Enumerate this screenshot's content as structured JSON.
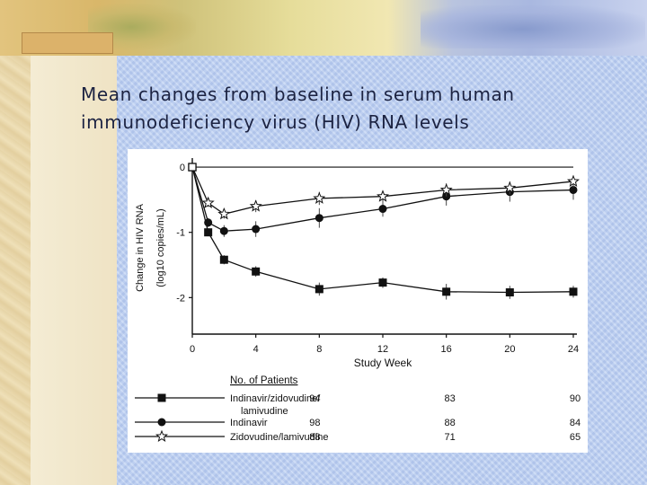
{
  "slide": {
    "title_line1": "Mean changes from baseline in serum human",
    "title_line2": "immunodeficiency virus (HIV) RNA levels"
  },
  "chart_data": {
    "type": "line",
    "ylabel_line1": "Change in HIV RNA",
    "ylabel_line2": "(log10 copies/mL)",
    "xlabel": "Study Week",
    "xlim": [
      0,
      24
    ],
    "ylim": [
      -2.4,
      0.05
    ],
    "x_ticks": [
      0,
      4,
      8,
      12,
      16,
      20,
      24
    ],
    "y_ticks": [
      0,
      -1,
      -2
    ],
    "legend_header": "No. of Patients",
    "series": [
      {
        "name": "Indinavir/zidovudine/ lamivudine",
        "name_line1": "Indinavir/zidovudine/",
        "name_line2": "lamivudine",
        "marker": "square",
        "x": [
          0,
          1,
          2,
          4,
          8,
          12,
          16,
          20,
          24
        ],
        "y": [
          0,
          -1.0,
          -1.42,
          -1.6,
          -1.87,
          -1.77,
          -1.91,
          -1.92,
          -1.91
        ],
        "err": [
          0,
          0.06,
          0.07,
          0.08,
          0.1,
          0.08,
          0.12,
          0.1,
          0.09
        ],
        "patients": [
          "94",
          "83",
          "90"
        ]
      },
      {
        "name": "Indinavir",
        "marker": "circle",
        "x": [
          0,
          1,
          2,
          4,
          8,
          12,
          16,
          20,
          24
        ],
        "y": [
          0,
          -0.85,
          -0.98,
          -0.95,
          -0.78,
          -0.64,
          -0.45,
          -0.38,
          -0.35
        ],
        "err": [
          0,
          0.07,
          0.09,
          0.12,
          0.15,
          0.12,
          0.14,
          0.15,
          0.15
        ],
        "patients": [
          "98",
          "88",
          "84"
        ]
      },
      {
        "name": "Zidovudine/lamivudine",
        "marker": "star",
        "x": [
          0,
          1,
          2,
          4,
          8,
          12,
          16,
          20,
          24
        ],
        "y": [
          0,
          -0.55,
          -0.72,
          -0.6,
          -0.48,
          -0.45,
          -0.35,
          -0.32,
          -0.22
        ],
        "err": [
          0,
          0.06,
          0.07,
          0.09,
          0.1,
          0.09,
          0.1,
          0.1,
          0.09
        ],
        "patients": [
          "88",
          "71",
          "65"
        ]
      }
    ]
  }
}
